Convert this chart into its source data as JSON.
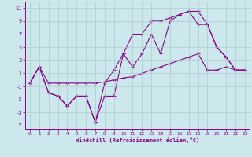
{
  "xlabel": "Windchill (Refroidissement éolien,°C)",
  "bg_color": "#cce8ec",
  "line_color": "#880088",
  "grid_color": "#aacccc",
  "xlim": [
    -0.5,
    23.5
  ],
  "ylim": [
    -7.5,
    12
  ],
  "yticks": [
    -7,
    -5,
    -3,
    -1,
    1,
    3,
    5,
    7,
    9,
    11
  ],
  "xticks": [
    0,
    1,
    2,
    3,
    4,
    5,
    6,
    7,
    8,
    9,
    10,
    11,
    12,
    13,
    14,
    15,
    16,
    17,
    18,
    19,
    20,
    21,
    22,
    23
  ],
  "line1_x": [
    0,
    1,
    2,
    3,
    4,
    5,
    6,
    7,
    8,
    9,
    10,
    11,
    12,
    13,
    14,
    15,
    16,
    17,
    18,
    19,
    20,
    21,
    22,
    23
  ],
  "line1_y": [
    -0.5,
    2,
    -2,
    -2.5,
    -4,
    -2.5,
    -2.5,
    -6.5,
    -2.5,
    -2.5,
    4,
    2,
    4,
    7,
    4,
    9,
    10,
    10.5,
    10.5,
    8.5,
    5,
    3.5,
    1.5,
    1.5
  ],
  "line2_x": [
    0,
    1,
    2,
    3,
    4,
    5,
    6,
    7,
    8,
    9,
    10,
    11,
    12,
    13,
    14,
    15,
    16,
    17,
    18,
    19,
    20,
    21,
    22,
    23
  ],
  "line2_y": [
    -0.5,
    2,
    -2,
    -2.5,
    -4,
    -2.5,
    -2.5,
    -6.5,
    -0.5,
    1.5,
    4,
    7,
    7,
    9,
    9,
    9.5,
    10,
    10.5,
    8.5,
    8.5,
    5,
    3.5,
    1.5,
    1.5
  ],
  "line3_x": [
    0,
    1,
    2,
    3,
    4,
    5,
    6,
    7,
    8,
    9,
    10,
    11,
    12,
    13,
    14,
    15,
    16,
    17,
    18,
    19,
    20,
    21,
    22,
    23
  ],
  "line3_y": [
    -0.5,
    2,
    -0.5,
    -0.5,
    -0.5,
    -0.5,
    -0.5,
    -0.5,
    -0.3,
    0,
    0.3,
    0.5,
    1,
    1.5,
    2,
    2.5,
    3,
    3.5,
    4,
    1.5,
    1.5,
    2,
    1.5,
    1.5
  ]
}
